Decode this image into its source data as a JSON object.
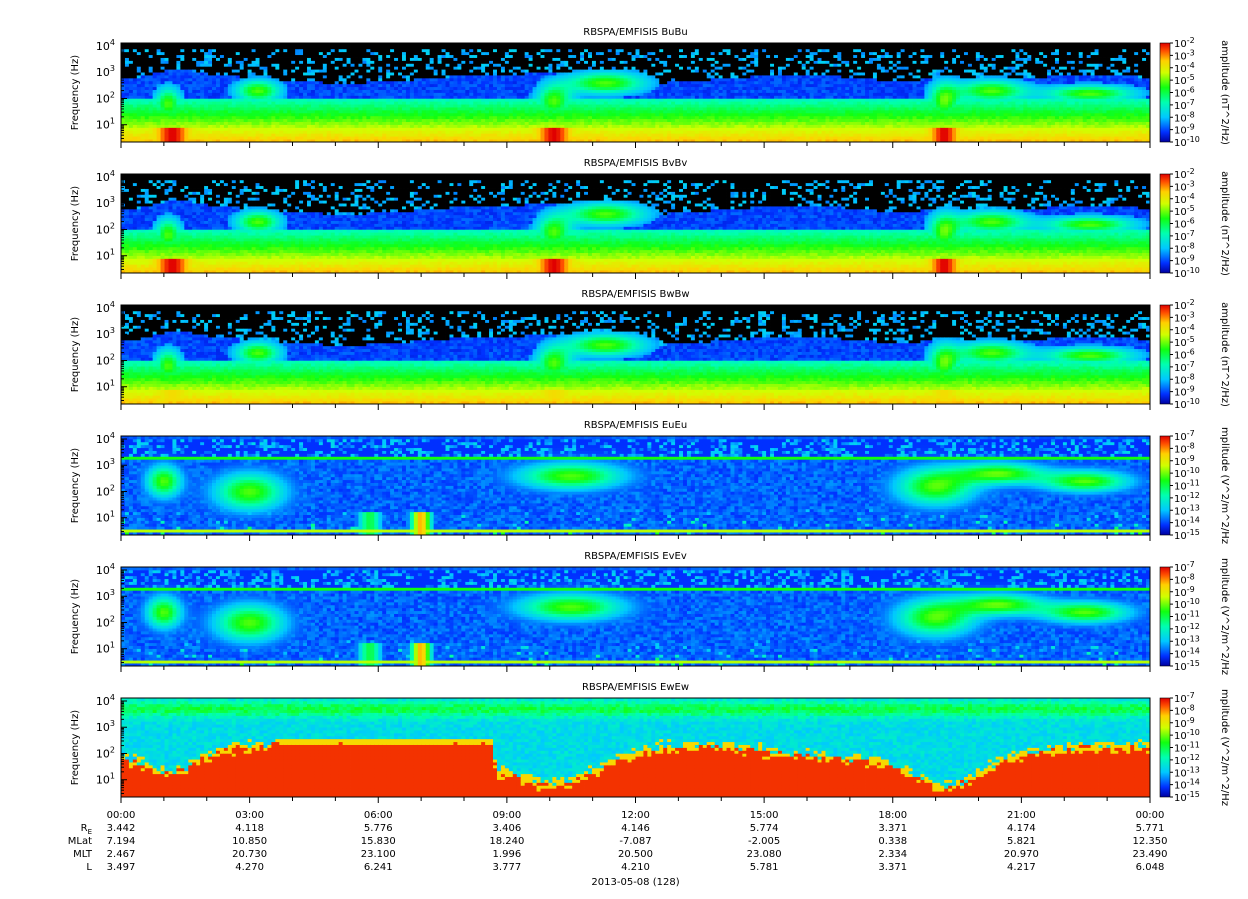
{
  "chart_data": {
    "type": "heatmap",
    "x_tick_labels": [
      "00:00",
      "03:00",
      "06:00",
      "09:00",
      "12:00",
      "15:00",
      "18:00",
      "21:00",
      "00:00"
    ],
    "y_scale": "log",
    "y_tick_labels": [
      "10^1",
      "10^2",
      "10^3",
      "10^4"
    ],
    "ylabel": "Frequency (Hz)",
    "panels": [
      {
        "title": "RBSPA/EMFISIS  BuBu",
        "ylabel": "Frequency (Hz)",
        "colorbar_label": "amplitude (nT^2/Hz)",
        "colorbar_range_exp": [
          -10,
          -2
        ],
        "kind": "B",
        "mask_variant": 0
      },
      {
        "title": "RBSPA/EMFISIS  BvBv",
        "ylabel": "Frequency (Hz)",
        "colorbar_label": "amplitude (nT^2/Hz)",
        "colorbar_range_exp": [
          -10,
          -2
        ],
        "kind": "B",
        "mask_variant": 0
      },
      {
        "title": "RBSPA/EMFISIS  BwBw",
        "ylabel": "Frequency (Hz)",
        "colorbar_label": "amplitude (nT^2/Hz)",
        "colorbar_range_exp": [
          -10,
          -2
        ],
        "kind": "B",
        "mask_variant": 1
      },
      {
        "title": "RBSPA/EMFISIS  EuEu",
        "ylabel": "Frequency (Hz)",
        "colorbar_label": "mplitude (V^2/m^2/Hz",
        "colorbar_range_exp": [
          -15,
          -7
        ],
        "kind": "E",
        "mask_variant": 0
      },
      {
        "title": "RBSPA/EMFISIS  EvEv",
        "ylabel": "Frequency (Hz)",
        "colorbar_label": "mplitude (V^2/m^2/Hz",
        "colorbar_range_exp": [
          -15,
          -7
        ],
        "kind": "E",
        "mask_variant": 1
      },
      {
        "title": "RBSPA/EMFISIS  EwEw",
        "ylabel": "Frequency (Hz)",
        "colorbar_label": "mplitude (V^2/m^2/Hz",
        "colorbar_range_exp": [
          -15,
          -7
        ],
        "kind": "Ew",
        "mask_variant": 0
      }
    ],
    "ephemeris": {
      "labels": [
        "R_E",
        "MLat",
        "MLT",
        "L"
      ],
      "label_main": [
        "R",
        "MLat",
        "MLT",
        "L"
      ],
      "label_sub": [
        "E",
        "",
        "",
        ""
      ],
      "rows": [
        [
          "3.442",
          "4.118",
          "5.776",
          "3.406",
          "4.146",
          "5.774",
          "3.371",
          "4.174",
          "5.771"
        ],
        [
          "7.194",
          "10.850",
          "15.830",
          "18.240",
          "-7.087",
          "-2.005",
          "0.338",
          "5.821",
          "12.350"
        ],
        [
          "2.467",
          "20.730",
          "23.100",
          "1.996",
          "20.500",
          "23.080",
          "2.334",
          "20.970",
          "23.490"
        ],
        [
          "3.497",
          "4.270",
          "6.241",
          "3.777",
          "4.210",
          "5.781",
          "3.371",
          "4.217",
          "6.048"
        ]
      ]
    },
    "date_label": "2013-05-08 (128)"
  }
}
